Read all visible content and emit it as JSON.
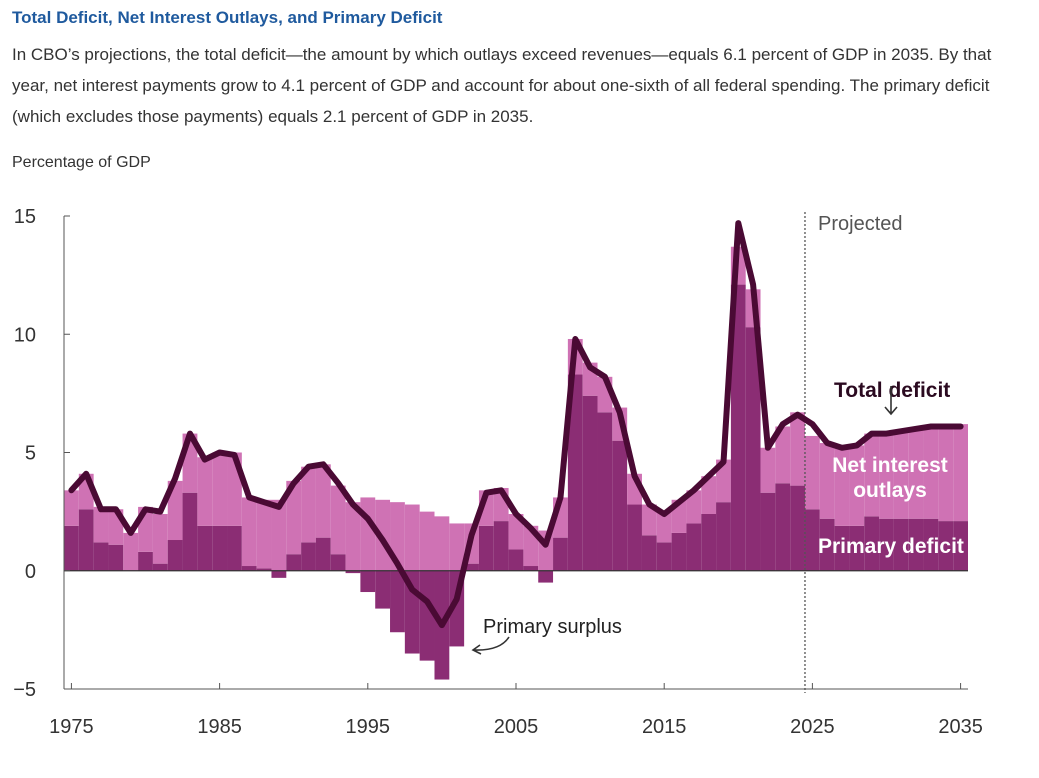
{
  "header": {
    "title": "Total Deficit, Net Interest Outlays, and Primary Deficit",
    "subtitle": "In CBO’s projections, the total deficit—the amount by which outlays exceed revenues—equals 6.1 percent of GDP in 2035. By that year, net interest payments grow to 4.1 percent of GDP and account for about one-sixth of all federal spending. The primary deficit (which excludes those payments) equals 2.1 percent of GDP in 2035."
  },
  "colors": {
    "total_deficit": "#4a0a34",
    "net_interest": "#cf72b4",
    "primary_deficit": "#8b2d74",
    "axis": "#555555",
    "projected_line": "#555555"
  },
  "chart_data": {
    "type": "bar",
    "ylabel": "Percentage of GDP",
    "ylim": [
      -5,
      15
    ],
    "yticks": [
      "15",
      "10",
      "5",
      "0",
      "−5"
    ],
    "ytick_values": [
      15,
      10,
      5,
      0,
      -5
    ],
    "xlim": [
      1974.5,
      2035.5
    ],
    "xticks": [
      "1975",
      "1985",
      "1995",
      "2005",
      "2015",
      "2025",
      "2035"
    ],
    "xtick_values": [
      1975,
      1985,
      1995,
      2005,
      2015,
      2025,
      2035
    ],
    "projected_start": 2024.5,
    "years": [
      1975,
      1976,
      1977,
      1978,
      1979,
      1980,
      1981,
      1982,
      1983,
      1984,
      1985,
      1986,
      1987,
      1988,
      1989,
      1990,
      1991,
      1992,
      1993,
      1994,
      1995,
      1996,
      1997,
      1998,
      1999,
      2000,
      2001,
      2002,
      2003,
      2004,
      2005,
      2006,
      2007,
      2008,
      2009,
      2010,
      2011,
      2012,
      2013,
      2014,
      2015,
      2016,
      2017,
      2018,
      2019,
      2020,
      2021,
      2022,
      2023,
      2024,
      2025,
      2026,
      2027,
      2028,
      2029,
      2030,
      2031,
      2032,
      2033,
      2034,
      2035
    ],
    "series": [
      {
        "name": "Primary deficit",
        "values": [
          1.9,
          2.6,
          1.2,
          1.1,
          0.0,
          0.8,
          0.3,
          1.3,
          3.3,
          1.9,
          1.9,
          1.9,
          0.2,
          0.1,
          -0.3,
          0.7,
          1.2,
          1.4,
          0.7,
          -0.1,
          -0.9,
          -1.6,
          -2.6,
          -3.5,
          -3.8,
          -4.6,
          -3.2,
          0.3,
          1.9,
          2.1,
          0.9,
          0.2,
          -0.5,
          1.4,
          8.3,
          7.4,
          6.7,
          5.5,
          2.8,
          1.5,
          1.2,
          1.6,
          2.0,
          2.4,
          2.9,
          12.1,
          10.3,
          3.3,
          3.7,
          3.6,
          2.6,
          2.2,
          1.9,
          1.9,
          2.3,
          2.2,
          2.2,
          2.2,
          2.2,
          2.1,
          2.1
        ]
      },
      {
        "name": "Net interest outlays",
        "values": [
          1.5,
          1.5,
          1.5,
          1.5,
          1.6,
          1.9,
          2.1,
          2.5,
          2.5,
          2.9,
          3.1,
          3.1,
          2.9,
          2.9,
          3.0,
          3.1,
          3.2,
          3.1,
          2.9,
          2.9,
          3.1,
          3.0,
          2.9,
          2.8,
          2.5,
          2.3,
          2.0,
          1.7,
          1.5,
          1.4,
          1.5,
          1.7,
          1.7,
          1.7,
          1.5,
          1.4,
          1.5,
          1.4,
          1.3,
          1.3,
          1.3,
          1.4,
          1.4,
          1.6,
          1.8,
          1.6,
          1.6,
          1.9,
          2.4,
          3.1,
          3.1,
          3.2,
          3.3,
          3.4,
          3.5,
          3.6,
          3.7,
          3.8,
          3.9,
          4.0,
          4.1
        ]
      },
      {
        "name": "Total deficit",
        "values": [
          3.4,
          4.1,
          2.6,
          2.6,
          1.6,
          2.6,
          2.5,
          3.9,
          5.8,
          4.7,
          5.0,
          4.9,
          3.1,
          2.9,
          2.7,
          3.7,
          4.4,
          4.5,
          3.7,
          2.8,
          2.2,
          1.3,
          0.3,
          -0.8,
          -1.3,
          -2.3,
          -1.2,
          1.5,
          3.3,
          3.4,
          2.4,
          1.8,
          1.1,
          3.1,
          9.8,
          8.6,
          8.2,
          6.7,
          4.0,
          2.8,
          2.4,
          2.9,
          3.4,
          4.0,
          4.6,
          14.7,
          12.1,
          5.2,
          6.2,
          6.6,
          6.2,
          5.4,
          5.2,
          5.3,
          5.8,
          5.8,
          5.9,
          6.0,
          6.1,
          6.1,
          6.1
        ]
      }
    ],
    "annotations": {
      "projected": "Projected",
      "total_deficit": "Total deficit",
      "net_interest_line1": "Net interest",
      "net_interest_line2": "outlays",
      "primary_deficit": "Primary deficit",
      "primary_surplus": "Primary surplus"
    }
  }
}
